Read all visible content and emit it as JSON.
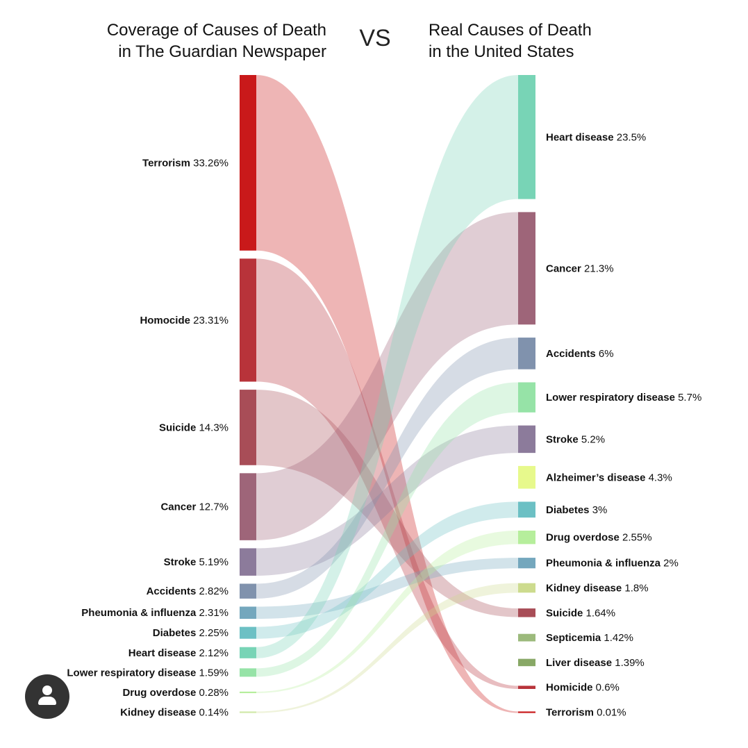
{
  "titles": {
    "left": "Coverage of Causes of Death in The Guardian Newspaper",
    "left_line1": "Coverage of Causes of Death",
    "left_line2": "in The Guardian Newspaper",
    "vs": "VS",
    "right_line1": "Real Causes of Death",
    "right_line2": "in the United States"
  },
  "chart_data": {
    "type": "sankey",
    "title": "Coverage of Causes of Death in The Guardian Newspaper VS Real Causes of Death in the United States",
    "left_nodes": [
      {
        "name": "Terrorism",
        "value": 33.26,
        "label": "33.26%",
        "color": "#c9191a"
      },
      {
        "name": "Homocide",
        "value": 23.31,
        "label": "23.31%",
        "color": "#b8333a"
      },
      {
        "name": "Suicide",
        "value": 14.3,
        "label": "14.3%",
        "color": "#a84d57"
      },
      {
        "name": "Cancer",
        "value": 12.7,
        "label": "12.7%",
        "color": "#9e6579"
      },
      {
        "name": "Stroke",
        "value": 5.19,
        "label": "5.19%",
        "color": "#8c7b9b"
      },
      {
        "name": "Accidents",
        "value": 2.82,
        "label": "2.82%",
        "color": "#8092ad"
      },
      {
        "name": "Pheumonia & influenza",
        "value": 2.31,
        "label": "2.31%",
        "color": "#74a7bd"
      },
      {
        "name": "Diabetes",
        "value": 2.25,
        "label": "2.25%",
        "color": "#6cc0c4"
      },
      {
        "name": "Heart disease",
        "value": 2.12,
        "label": "2.12%",
        "color": "#78d4b6"
      },
      {
        "name": "Lower respiratory disease",
        "value": 1.59,
        "label": "1.59%",
        "color": "#96e3a7"
      },
      {
        "name": "Drug overdose",
        "value": 0.28,
        "label": "0.28%",
        "color": "#b6ee9c"
      },
      {
        "name": "Kidney disease",
        "value": 0.14,
        "label": "0.14%",
        "color": "#d0e8a8"
      }
    ],
    "right_nodes": [
      {
        "name": "Heart disease",
        "value": 23.5,
        "label": "23.5%",
        "color": "#78d4b6"
      },
      {
        "name": "Cancer",
        "value": 21.3,
        "label": "21.3%",
        "color": "#9e6579"
      },
      {
        "name": "Accidents",
        "value": 6,
        "label": "6%",
        "color": "#8092ad"
      },
      {
        "name": "Lower respiratory disease",
        "value": 5.7,
        "label": "5.7%",
        "color": "#96e3a7"
      },
      {
        "name": "Stroke",
        "value": 5.2,
        "label": "5.2%",
        "color": "#8c7b9b"
      },
      {
        "name": "Alzheimer’s disease",
        "value": 4.3,
        "label": "4.3%",
        "color": "#e7f98c"
      },
      {
        "name": "Diabetes",
        "value": 3,
        "label": "3%",
        "color": "#6cc0c4"
      },
      {
        "name": "Drug overdose",
        "value": 2.55,
        "label": "2.55%",
        "color": "#b6ee9c"
      },
      {
        "name": "Pheumonia & influenza",
        "value": 2,
        "label": "2%",
        "color": "#74a7bd"
      },
      {
        "name": "Kidney disease",
        "value": 1.8,
        "label": "1.8%",
        "color": "#cddb8e"
      },
      {
        "name": "Suicide",
        "value": 1.64,
        "label": "1.64%",
        "color": "#a84d57"
      },
      {
        "name": "Septicemia",
        "value": 1.42,
        "label": "1.42%",
        "color": "#9cba7c"
      },
      {
        "name": "Liver disease",
        "value": 1.39,
        "label": "1.39%",
        "color": "#88a866"
      },
      {
        "name": "Homicide",
        "value": 0.6,
        "label": "0.6%",
        "color": "#b8333a"
      },
      {
        "name": "Terrorism",
        "value": 0.01,
        "label": "0.01%",
        "color": "#c9191a"
      }
    ],
    "links": [
      {
        "from": "Terrorism",
        "to": "Terrorism"
      },
      {
        "from": "Homocide",
        "to": "Homicide"
      },
      {
        "from": "Suicide",
        "to": "Suicide"
      },
      {
        "from": "Cancer",
        "to": "Cancer"
      },
      {
        "from": "Stroke",
        "to": "Stroke"
      },
      {
        "from": "Accidents",
        "to": "Accidents"
      },
      {
        "from": "Pheumonia & influenza",
        "to": "Pheumonia & influenza"
      },
      {
        "from": "Diabetes",
        "to": "Diabetes"
      },
      {
        "from": "Heart disease",
        "to": "Heart disease"
      },
      {
        "from": "Lower respiratory disease",
        "to": "Lower respiratory disease"
      },
      {
        "from": "Drug overdose",
        "to": "Drug overdose"
      },
      {
        "from": "Kidney disease",
        "to": "Kidney disease"
      }
    ]
  },
  "user_button": {
    "icon": "user-icon"
  }
}
